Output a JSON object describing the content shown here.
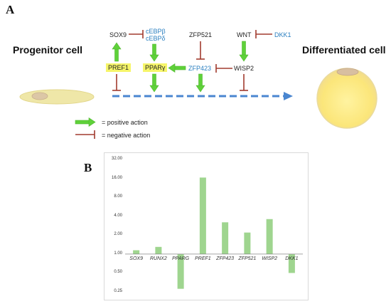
{
  "panel_a": {
    "letter": "A",
    "progenitor_label": "Progenitor cell",
    "differentiated_label": "Differentiated cell",
    "genes": {
      "sox9": "SOX9",
      "cebp_beta": "cEBPβ",
      "cebp_delta": "cEBPδ",
      "zfp521": "ZFP521",
      "wnt": "WNT",
      "dkk1": "DKK1",
      "pref1": "PREF1",
      "pparg": "PPARγ",
      "zfp423": "ZFP423",
      "wisp2": "WISP2"
    },
    "legend": {
      "positive": "= positive action",
      "negative": "= negative action"
    },
    "colors": {
      "positive_arrow": "#5fd13a",
      "negative_arrow": "#a23b2e",
      "progression_arrow": "#4a86d0",
      "gene_blue": "#2a7fc0",
      "highlight": "#f6f56a"
    }
  },
  "panel_b": {
    "letter": "B",
    "chart_data": {
      "type": "bar",
      "categories": [
        "SOX9",
        "RUNX2",
        "PPARG",
        "PREF1",
        "ZFP423",
        "ZFP521",
        "WISP2",
        "DKK1"
      ],
      "values": [
        1.15,
        1.3,
        0.28,
        16.5,
        3.2,
        2.2,
        3.6,
        0.5
      ],
      "y_scale": "log2",
      "baseline": 1.0,
      "ylim": [
        0.25,
        32.0
      ],
      "y_ticks": [
        0.25,
        0.5,
        1.0,
        2.0,
        4.0,
        8.0,
        16.0,
        32.0
      ],
      "y_tick_labels": [
        "0.25",
        "0.50",
        "1.00",
        "2.00",
        "4.00",
        "8.00",
        "16.00",
        "32.00"
      ],
      "bar_color": "#9fd58f",
      "grid": false
    }
  }
}
